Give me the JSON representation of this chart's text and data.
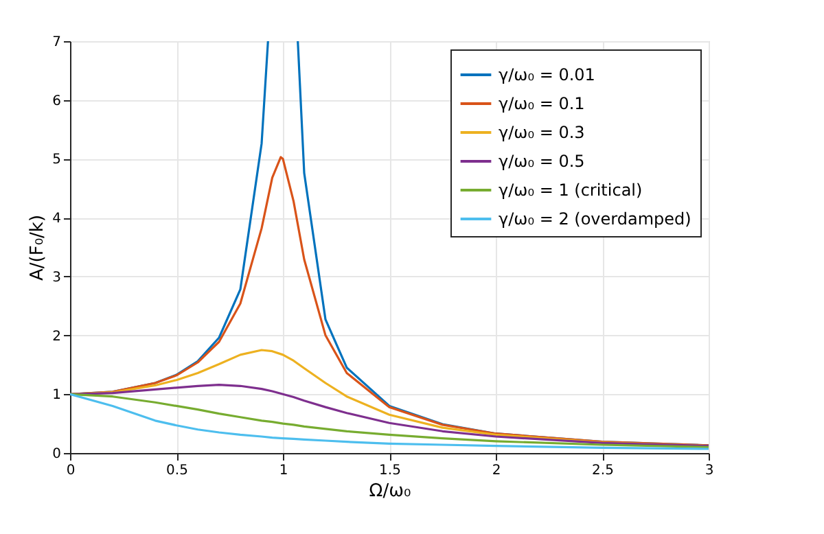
{
  "chart_data": {
    "type": "line",
    "xlabel": "Ω/ω₀",
    "ylabel": "A/(F₀/k)",
    "xlim": [
      0,
      3
    ],
    "ylim": [
      0,
      7
    ],
    "xticks": [
      0,
      0.5,
      1,
      1.5,
      2,
      2.5,
      3
    ],
    "yticks": [
      0,
      1,
      2,
      3,
      4,
      5,
      6,
      7
    ],
    "grid": true,
    "legend": "top right",
    "line_style": "solid",
    "marker": "none",
    "x": [
      0,
      0.2,
      0.4,
      0.5,
      0.6,
      0.7,
      0.8,
      0.9,
      0.95,
      1,
      1.05,
      1.1,
      1.2,
      1.3,
      1.5,
      1.75,
      2,
      2.5,
      3
    ],
    "series": [
      {
        "name": "γ/ω₀ = 0.01",
        "color": "#0072bd",
        "x": [
          0,
          0.2,
          0.4,
          0.5,
          0.6,
          0.7,
          0.8,
          0.9,
          0.93,
          1,
          1.07,
          1.1,
          1.2,
          1.3,
          1.5,
          1.75,
          2,
          2.5,
          3
        ],
        "values": [
          1,
          1.04,
          1.19,
          1.33,
          1.56,
          1.96,
          2.78,
          5.26,
          7.0,
          null,
          7.0,
          4.76,
          2.27,
          1.45,
          0.8,
          0.49,
          0.33,
          0.19,
          0.13
        ]
      },
      {
        "name": "γ/ω₀ = 0.1",
        "color": "#d95319",
        "x": [
          0,
          0.2,
          0.4,
          0.5,
          0.6,
          0.7,
          0.8,
          0.9,
          0.95,
          0.99,
          1,
          1.05,
          1.1,
          1.2,
          1.3,
          1.5,
          1.75,
          2,
          2.5,
          3
        ],
        "values": [
          1,
          1.04,
          1.19,
          1.32,
          1.54,
          1.89,
          2.54,
          3.82,
          4.68,
          5.03,
          5.0,
          4.28,
          3.29,
          2.0,
          1.36,
          0.78,
          0.48,
          0.33,
          0.19,
          0.13
        ]
      },
      {
        "name": "γ/ω₀ = 0.3",
        "color": "#edb120",
        "values": [
          1,
          1.03,
          1.15,
          1.24,
          1.36,
          1.51,
          1.67,
          1.75,
          1.73,
          1.67,
          1.57,
          1.44,
          1.19,
          0.96,
          0.65,
          0.43,
          0.31,
          0.18,
          0.12
        ]
      },
      {
        "name": "γ/ω₀ = 0.5",
        "color": "#7e2f8e",
        "values": [
          1,
          1.02,
          1.08,
          1.11,
          1.14,
          1.16,
          1.14,
          1.09,
          1.05,
          1,
          0.95,
          0.89,
          0.78,
          0.68,
          0.51,
          0.37,
          0.28,
          0.17,
          0.12
        ]
      },
      {
        "name": "γ/ω₀ = 1 (critical)",
        "color": "#77ac30",
        "values": [
          1,
          0.96,
          0.86,
          0.8,
          0.74,
          0.67,
          0.61,
          0.55,
          0.53,
          0.5,
          0.48,
          0.45,
          0.41,
          0.37,
          0.31,
          0.25,
          0.2,
          0.14,
          0.1
        ]
      },
      {
        "name": "γ/ω₀ = 2 (overdamped)",
        "color": "#4dbeee",
        "values": [
          1,
          0.8,
          0.55,
          0.47,
          0.4,
          0.35,
          0.31,
          0.28,
          0.26,
          0.25,
          0.24,
          0.23,
          0.21,
          0.19,
          0.16,
          0.14,
          0.12,
          0.09,
          0.07
        ]
      }
    ]
  }
}
